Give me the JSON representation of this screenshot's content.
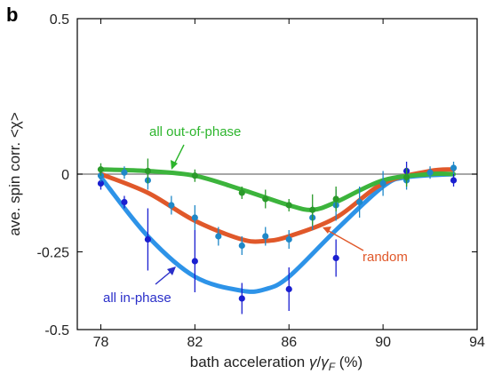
{
  "panel_label": "b",
  "chart_data": {
    "type": "scatter",
    "xlabel_main": "bath acceleration ",
    "xlabel_gamma": "γ",
    "xlabel_slash": "/",
    "xlabel_gammaF": "γ",
    "xlabel_sub": "F",
    "xlabel_unit": " (%)",
    "ylabel": "ave. spin corr. <χ>",
    "xlim": [
      77,
      94
    ],
    "ylim": [
      -0.5,
      0.5
    ],
    "x_ticks": [
      78,
      82,
      86,
      90,
      94
    ],
    "y_ticks": [
      0.5,
      0,
      -0.25,
      -0.5
    ],
    "y_tick_labels": [
      "0.5",
      "0",
      "-0.25",
      "-0.5"
    ],
    "zero_line": true,
    "annotations": [
      {
        "text": "all out-of-phase",
        "color": "#2db52d"
      },
      {
        "text": "random",
        "color": "#e0582a"
      },
      {
        "text": "all in-phase",
        "color": "#2a2fc9"
      }
    ],
    "series": [
      {
        "name": "all out-of-phase",
        "color": "#2a9a2a",
        "line_color": "#3cb43c",
        "fit_x": [
          78,
          80,
          82,
          84,
          86,
          87,
          88,
          90,
          92,
          93
        ],
        "fit_y": [
          0.015,
          0.01,
          -0.005,
          -0.05,
          -0.1,
          -0.115,
          -0.09,
          -0.02,
          0.0,
          0.0
        ],
        "points_x": [
          78,
          80,
          82,
          84,
          85,
          86,
          87,
          88,
          91
        ],
        "points_y": [
          0.015,
          0.01,
          -0.005,
          -0.06,
          -0.08,
          -0.1,
          -0.115,
          -0.08,
          -0.01
        ],
        "errors": [
          0.02,
          0.04,
          0.02,
          0.02,
          0.03,
          0.02,
          0.05,
          0.04,
          0.03
        ]
      },
      {
        "name": "random",
        "color": "#1f88c8",
        "line_color": "#e0582a",
        "fit_x": [
          78,
          80,
          82,
          84,
          85,
          86,
          88,
          90,
          92,
          93
        ],
        "fit_y": [
          0.0,
          -0.06,
          -0.15,
          -0.21,
          -0.215,
          -0.2,
          -0.14,
          -0.03,
          0.01,
          0.015
        ],
        "points_x": [
          78,
          79,
          80,
          81,
          82,
          83,
          84,
          85,
          86,
          87,
          88,
          89,
          90,
          91,
          92,
          93
        ],
        "points_y": [
          -0.005,
          0.005,
          -0.02,
          -0.1,
          -0.14,
          -0.2,
          -0.23,
          -0.2,
          -0.21,
          -0.14,
          -0.1,
          -0.09,
          -0.03,
          -0.02,
          0.005,
          0.02
        ],
        "errors": [
          0.02,
          0.02,
          0.03,
          0.03,
          0.04,
          0.03,
          0.03,
          0.03,
          0.03,
          0.04,
          0.05,
          0.05,
          0.04,
          0.03,
          0.02,
          0.02
        ]
      },
      {
        "name": "all in-phase",
        "color": "#1a1fd0",
        "line_color": "#2d93e8",
        "fit_x": [
          78,
          80,
          82,
          84,
          85,
          86,
          88,
          90,
          91,
          93
        ],
        "fit_y": [
          -0.01,
          -0.2,
          -0.33,
          -0.375,
          -0.37,
          -0.33,
          -0.18,
          -0.04,
          -0.01,
          0.0
        ],
        "points_x": [
          78,
          79,
          80,
          82,
          84,
          86,
          88,
          91,
          93
        ],
        "points_y": [
          -0.03,
          -0.09,
          -0.21,
          -0.28,
          -0.4,
          -0.37,
          -0.27,
          0.01,
          -0.02
        ],
        "errors": [
          0.02,
          0.02,
          0.1,
          0.1,
          0.05,
          0.07,
          0.06,
          0.03,
          0.02
        ]
      }
    ]
  }
}
